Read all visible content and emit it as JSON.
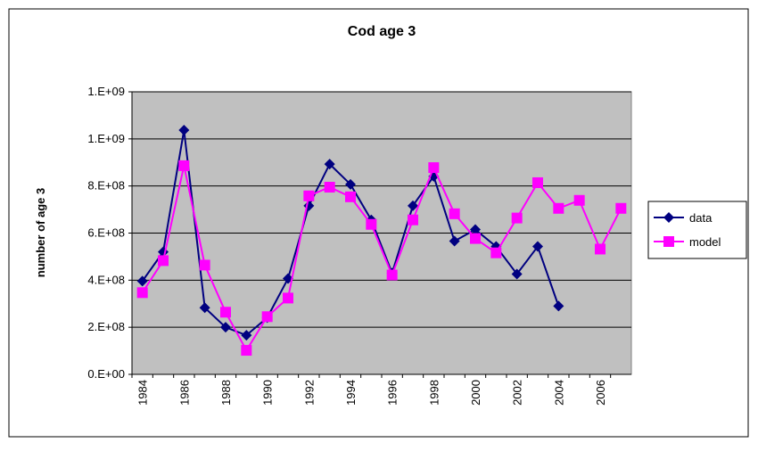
{
  "chart_data": {
    "type": "line",
    "title": "Cod age 3",
    "y_label": "number of age 3",
    "categories": [
      "1984",
      null,
      "1986",
      null,
      "1988",
      null,
      "1990",
      null,
      "1992",
      null,
      "1994",
      null,
      "1996",
      null,
      "1998",
      null,
      "2000",
      null,
      "2002",
      null,
      "2004",
      null,
      "2006",
      null
    ],
    "series": [
      {
        "name": "data",
        "color": "#000080",
        "marker": "diamond",
        "values": [
          396000000,
          520000000,
          1037000000,
          283000000,
          200000000,
          166000000,
          241000000,
          407000000,
          716000000,
          893000000,
          807000000,
          656000000,
          430000000,
          716000000,
          841000000,
          566000000,
          615000000,
          543000000,
          426000000,
          543000000,
          290000000,
          null,
          null,
          null
        ]
      },
      {
        "name": "model",
        "color": "#ff00ff",
        "marker": "square",
        "values": [
          347000000,
          483000000,
          886000000,
          464000000,
          264000000,
          102000000,
          245000000,
          324000000,
          758000000,
          795000000,
          754000000,
          637000000,
          422000000,
          656000000,
          878000000,
          682000000,
          577000000,
          516000000,
          664000000,
          814000000,
          705000000,
          739000000,
          532000000,
          705000000
        ]
      }
    ],
    "ylim": [
      0,
      1200000000
    ],
    "yticks": [
      {
        "value": 0,
        "label": "0.E+00"
      },
      {
        "value": 200000000,
        "label": "2.E+08"
      },
      {
        "value": 400000000,
        "label": "4.E+08"
      },
      {
        "value": 600000000,
        "label": "6.E+08"
      },
      {
        "value": 800000000,
        "label": "8.E+08"
      },
      {
        "value": 1000000000,
        "label": "1.E+09"
      },
      {
        "value": 1200000000,
        "label": "1.E+09"
      }
    ],
    "grid": true,
    "plot_background": "#c0c0c0",
    "legend": "right"
  }
}
